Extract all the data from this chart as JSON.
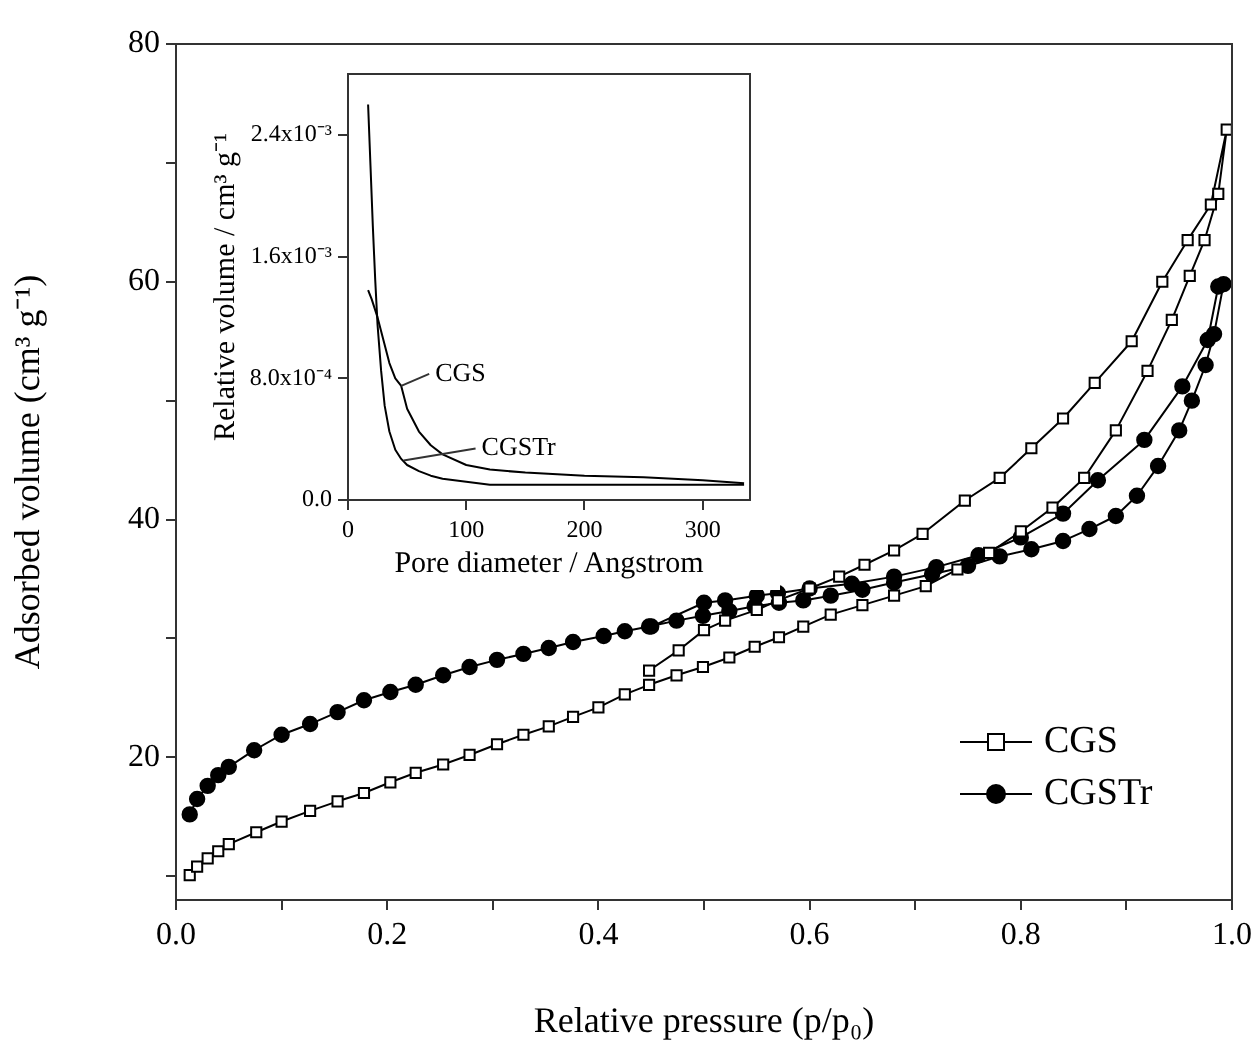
{
  "chart_data": [
    {
      "type": "line",
      "xlabel": "Relative pressure (p/p₀)",
      "ylabel": "Adsorbed volume (cm³ g⁻¹)",
      "xlim": [
        0,
        1
      ],
      "ylim": [
        8,
        80
      ],
      "xticks": [
        {
          "value": 0,
          "label": "0.0"
        },
        {
          "value": 0.1,
          "label": null
        },
        {
          "value": 0.2,
          "label": "0.2"
        },
        {
          "value": 0.3,
          "label": null
        },
        {
          "value": 0.4,
          "label": "0.4"
        },
        {
          "value": 0.5,
          "label": null
        },
        {
          "value": 0.6,
          "label": "0.6"
        },
        {
          "value": 0.7,
          "label": null
        },
        {
          "value": 0.8,
          "label": "0.8"
        },
        {
          "value": 0.9,
          "label": null
        },
        {
          "value": 1,
          "label": "1.0"
        }
      ],
      "yticks": [
        {
          "value": 10,
          "label": null
        },
        20,
        {
          "value": 30,
          "label": null
        },
        40,
        {
          "value": 50,
          "label": null
        },
        60,
        {
          "value": 70,
          "label": null
        },
        80
      ],
      "grid": false,
      "legend": "bottom right",
      "series": [
        {
          "name": "CGS",
          "color": "#000000",
          "marker": "square",
          "x": [
            0.013,
            0.02,
            0.03,
            0.04,
            0.05,
            0.076,
            0.1,
            0.127,
            0.153,
            0.178,
            0.203,
            0.227,
            0.253,
            0.278,
            0.304,
            0.329,
            0.353,
            0.376,
            0.4,
            0.425,
            0.448,
            0.474,
            0.499,
            0.524,
            0.548,
            0.571,
            0.594,
            0.62,
            0.65,
            0.68,
            0.71,
            0.74,
            0.77,
            0.8,
            0.83,
            0.86,
            0.89,
            0.92,
            0.943,
            0.96,
            0.974,
            0.987,
            0.995,
            0.98,
            0.958,
            0.934,
            0.905,
            0.87,
            0.84,
            0.81,
            0.78,
            0.747,
            0.707,
            0.68,
            0.652,
            0.628,
            0.6,
            0.57,
            0.55,
            0.52,
            0.5,
            0.476,
            0.448
          ],
          "values": [
            10.1,
            10.8,
            11.5,
            12.1,
            12.7,
            13.7,
            14.6,
            15.5,
            16.3,
            17,
            17.9,
            18.7,
            19.4,
            20.2,
            21.1,
            21.9,
            22.6,
            23.4,
            24.2,
            25.3,
            26.1,
            26.9,
            27.6,
            28.4,
            29.3,
            30.1,
            31,
            32,
            32.8,
            33.6,
            34.4,
            35.8,
            37.2,
            39,
            41,
            43.5,
            47.5,
            52.5,
            56.8,
            60.5,
            63.5,
            67.4,
            72.8,
            66.5,
            63.5,
            60,
            55,
            51.5,
            48.5,
            46,
            43.5,
            41.6,
            38.8,
            37.4,
            36.2,
            35.2,
            34.2,
            33.2,
            32.4,
            31.5,
            30.7,
            29,
            27.3
          ]
        },
        {
          "name": "CGSTr",
          "color": "#000000",
          "marker": "circle",
          "x": [
            0.013,
            0.02,
            0.03,
            0.04,
            0.05,
            0.074,
            0.1,
            0.127,
            0.153,
            0.178,
            0.203,
            0.227,
            0.253,
            0.278,
            0.304,
            0.329,
            0.353,
            0.376,
            0.405,
            0.425,
            0.448,
            0.474,
            0.499,
            0.524,
            0.548,
            0.571,
            0.594,
            0.62,
            0.65,
            0.68,
            0.716,
            0.75,
            0.78,
            0.81,
            0.84,
            0.865,
            0.89,
            0.91,
            0.93,
            0.95,
            0.962,
            0.975,
            0.983,
            0.992,
            0.987,
            0.977,
            0.953,
            0.917,
            0.873,
            0.84,
            0.8,
            0.76,
            0.72,
            0.68,
            0.64,
            0.6,
            0.57,
            0.55,
            0.52,
            0.5,
            0.45
          ],
          "values": [
            15.2,
            16.5,
            17.6,
            18.5,
            19.2,
            20.6,
            21.9,
            22.8,
            23.8,
            24.8,
            25.5,
            26.1,
            26.9,
            27.6,
            28.2,
            28.7,
            29.2,
            29.7,
            30.2,
            30.6,
            31,
            31.5,
            31.9,
            32.3,
            32.7,
            33,
            33.2,
            33.6,
            34.1,
            34.7,
            35.4,
            36.1,
            36.9,
            37.5,
            38.2,
            39.2,
            40.3,
            42,
            44.5,
            47.5,
            50,
            53,
            55.6,
            59.8,
            59.6,
            55.1,
            51.2,
            46.7,
            43.3,
            40.5,
            38.5,
            37,
            36,
            35.2,
            34.6,
            34.2,
            33.8,
            33.6,
            33.2,
            33,
            31
          ]
        }
      ]
    },
    {
      "type": "line",
      "xlabel": "Pore diameter / Angstrom",
      "ylabel": "Relative volume / cm³ g⁻¹",
      "xlim": [
        0,
        340
      ],
      "ylim": [
        0,
        0.0028
      ],
      "xticks": [
        0,
        100,
        200,
        300
      ],
      "yticks": [
        {
          "value": 0,
          "label": "0.0"
        },
        {
          "value": 0.0008,
          "label": "8.0x10⁻⁴"
        },
        {
          "value": 0.0016,
          "label": "1.6x10⁻³"
        },
        {
          "value": 0.0024,
          "label": "2.4x10⁻³"
        }
      ],
      "grid": false,
      "annotations": [
        {
          "text": "CGS",
          "x": 45,
          "y": 0.00075
        },
        {
          "text": "CGSTr",
          "x": 47,
          "y": 0.00026
        }
      ],
      "series": [
        {
          "color": "#000000",
          "x": [
            17,
            20,
            25,
            30,
            35,
            40,
            45,
            50,
            60,
            70,
            80,
            100,
            120,
            150,
            200,
            250,
            300,
            335
          ],
          "values": [
            0.00138,
            0.00132,
            0.0012,
            0.00105,
            0.0009,
            0.0008,
            0.00075,
            0.0006,
            0.00045,
            0.00036,
            0.0003,
            0.00023,
            0.0002,
            0.00018,
            0.00016,
            0.00015,
            0.00013,
            0.00011
          ]
        },
        {
          "color": "#000000",
          "x": [
            17,
            19,
            21,
            23,
            25,
            28,
            31,
            35,
            40,
            45,
            50,
            60,
            70,
            80,
            100,
            120,
            150,
            200,
            250,
            300,
            335
          ],
          "values": [
            0.0026,
            0.0022,
            0.0018,
            0.00145,
            0.00115,
            0.00085,
            0.00062,
            0.00045,
            0.00033,
            0.00027,
            0.00023,
            0.00019,
            0.00016,
            0.00014,
            0.00012,
            0.0001,
            0.0001,
            0.0001,
            0.0001,
            0.0001,
            0.0001
          ]
        }
      ]
    }
  ]
}
